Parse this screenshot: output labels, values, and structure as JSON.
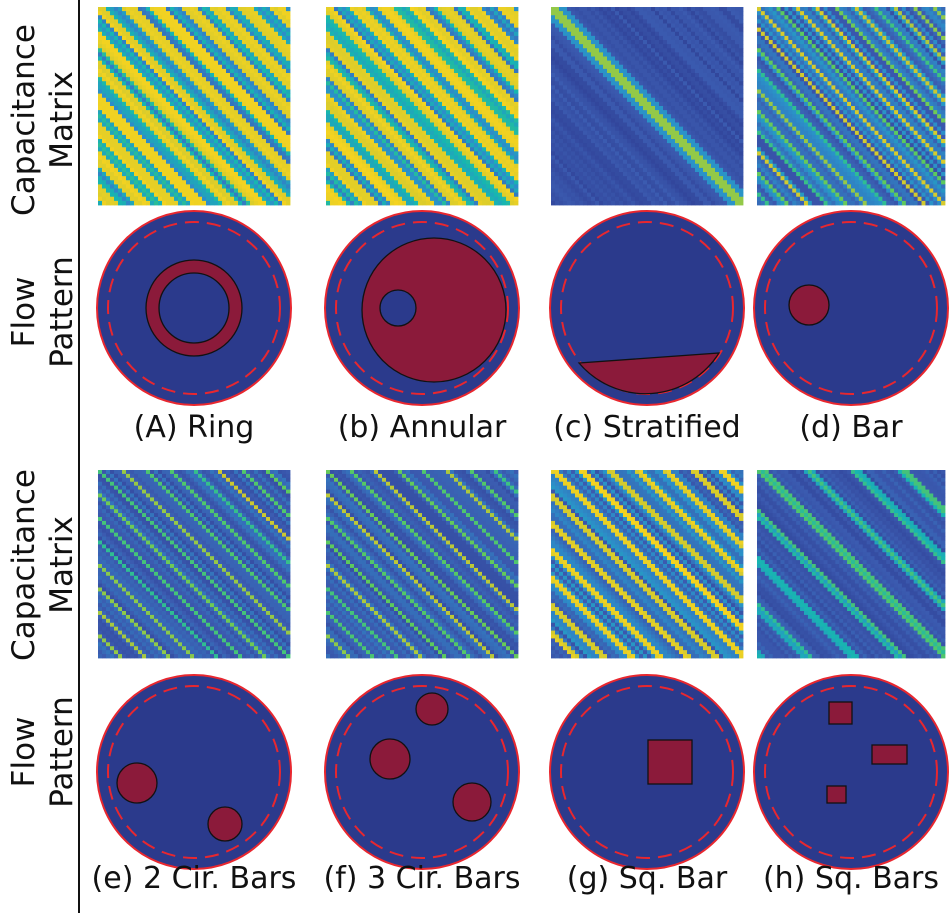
{
  "colors": {
    "background_fluid": "#2b3a8c",
    "inclusion": "#8b1a3a",
    "pipe_wall": "#e8272f",
    "outline": "#111111",
    "colormap": [
      "#2e3d93",
      "#3b5bb0",
      "#2c8fc9",
      "#17b6b0",
      "#5cc95e",
      "#c9c832",
      "#f5d320"
    ]
  },
  "row_labels": {
    "capacitance": [
      "Capacitance",
      "Matrix"
    ],
    "flow": [
      "Flow",
      "Pattern"
    ]
  },
  "panels": [
    {
      "id": "ring",
      "caption": "(A) Ring",
      "pattern": "ring",
      "matrix_style": "strong-multi"
    },
    {
      "id": "annular",
      "caption": "(b) Annular",
      "pattern": "annular",
      "matrix_style": "strong-multi"
    },
    {
      "id": "stratified",
      "caption": "(c) Stratified",
      "pattern": "stratified",
      "matrix_style": "faint-single"
    },
    {
      "id": "bar",
      "caption": "(d) Bar",
      "pattern": "bar",
      "matrix_style": "medium-multi"
    },
    {
      "id": "two-cir-bars",
      "caption": "(e) 2 Cir. Bars",
      "pattern": "two-circles",
      "matrix_style": "faint-multi"
    },
    {
      "id": "three-cir-bars",
      "caption": "(f) 3 Cir. Bars",
      "pattern": "three-circles",
      "matrix_style": "faint-multi"
    },
    {
      "id": "sq-bar",
      "caption": "(g) Sq. Bar",
      "pattern": "square",
      "matrix_style": "medium-yellow"
    },
    {
      "id": "sq-bars",
      "caption": "(h) Sq. Bars",
      "pattern": "squares",
      "matrix_style": "cyan-bands"
    }
  ]
}
